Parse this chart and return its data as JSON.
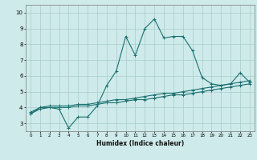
{
  "xlabel": "Humidex (Indice chaleur)",
  "ylabel": "",
  "background_color": "#ceeaea",
  "grid_color": "#aacccc",
  "line_color": "#1a7070",
  "xlim": [
    -0.5,
    23.5
  ],
  "ylim": [
    2.5,
    10.5
  ],
  "xticks": [
    0,
    1,
    2,
    3,
    4,
    5,
    6,
    7,
    8,
    9,
    10,
    11,
    12,
    13,
    14,
    15,
    16,
    17,
    18,
    19,
    20,
    21,
    22,
    23
  ],
  "yticks": [
    3,
    4,
    5,
    6,
    7,
    8,
    9,
    10
  ],
  "curve1_x": [
    0,
    1,
    2,
    3,
    4,
    5,
    6,
    7,
    8,
    9,
    10,
    11,
    12,
    13,
    14,
    15,
    16,
    17,
    18,
    19,
    20,
    21,
    22,
    23
  ],
  "curve1_y": [
    3.6,
    4.0,
    4.0,
    3.9,
    2.7,
    3.4,
    3.4,
    4.1,
    5.4,
    6.3,
    8.5,
    7.3,
    9.0,
    9.6,
    8.4,
    8.5,
    8.5,
    7.6,
    5.9,
    5.5,
    5.4,
    5.5,
    6.2,
    5.6
  ],
  "curve2_x": [
    0,
    1,
    2,
    3,
    4,
    5,
    6,
    7,
    8,
    9,
    10,
    11,
    12,
    13,
    14,
    15,
    16,
    17,
    18,
    19,
    20,
    21,
    22,
    23
  ],
  "curve2_y": [
    3.6,
    3.9,
    4.0,
    4.0,
    4.0,
    4.1,
    4.1,
    4.2,
    4.3,
    4.3,
    4.4,
    4.5,
    4.5,
    4.6,
    4.7,
    4.8,
    4.8,
    4.9,
    5.0,
    5.1,
    5.2,
    5.3,
    5.4,
    5.5
  ],
  "curve3_x": [
    0,
    1,
    2,
    3,
    4,
    5,
    6,
    7,
    8,
    9,
    10,
    11,
    12,
    13,
    14,
    15,
    16,
    17,
    18,
    19,
    20,
    21,
    22,
    23
  ],
  "curve3_y": [
    3.7,
    4.0,
    4.1,
    4.1,
    4.1,
    4.2,
    4.2,
    4.3,
    4.4,
    4.5,
    4.5,
    4.6,
    4.7,
    4.8,
    4.9,
    4.9,
    5.0,
    5.1,
    5.2,
    5.3,
    5.4,
    5.5,
    5.6,
    5.7
  ],
  "marker": "+",
  "markersize": 3,
  "linewidth": 0.8
}
